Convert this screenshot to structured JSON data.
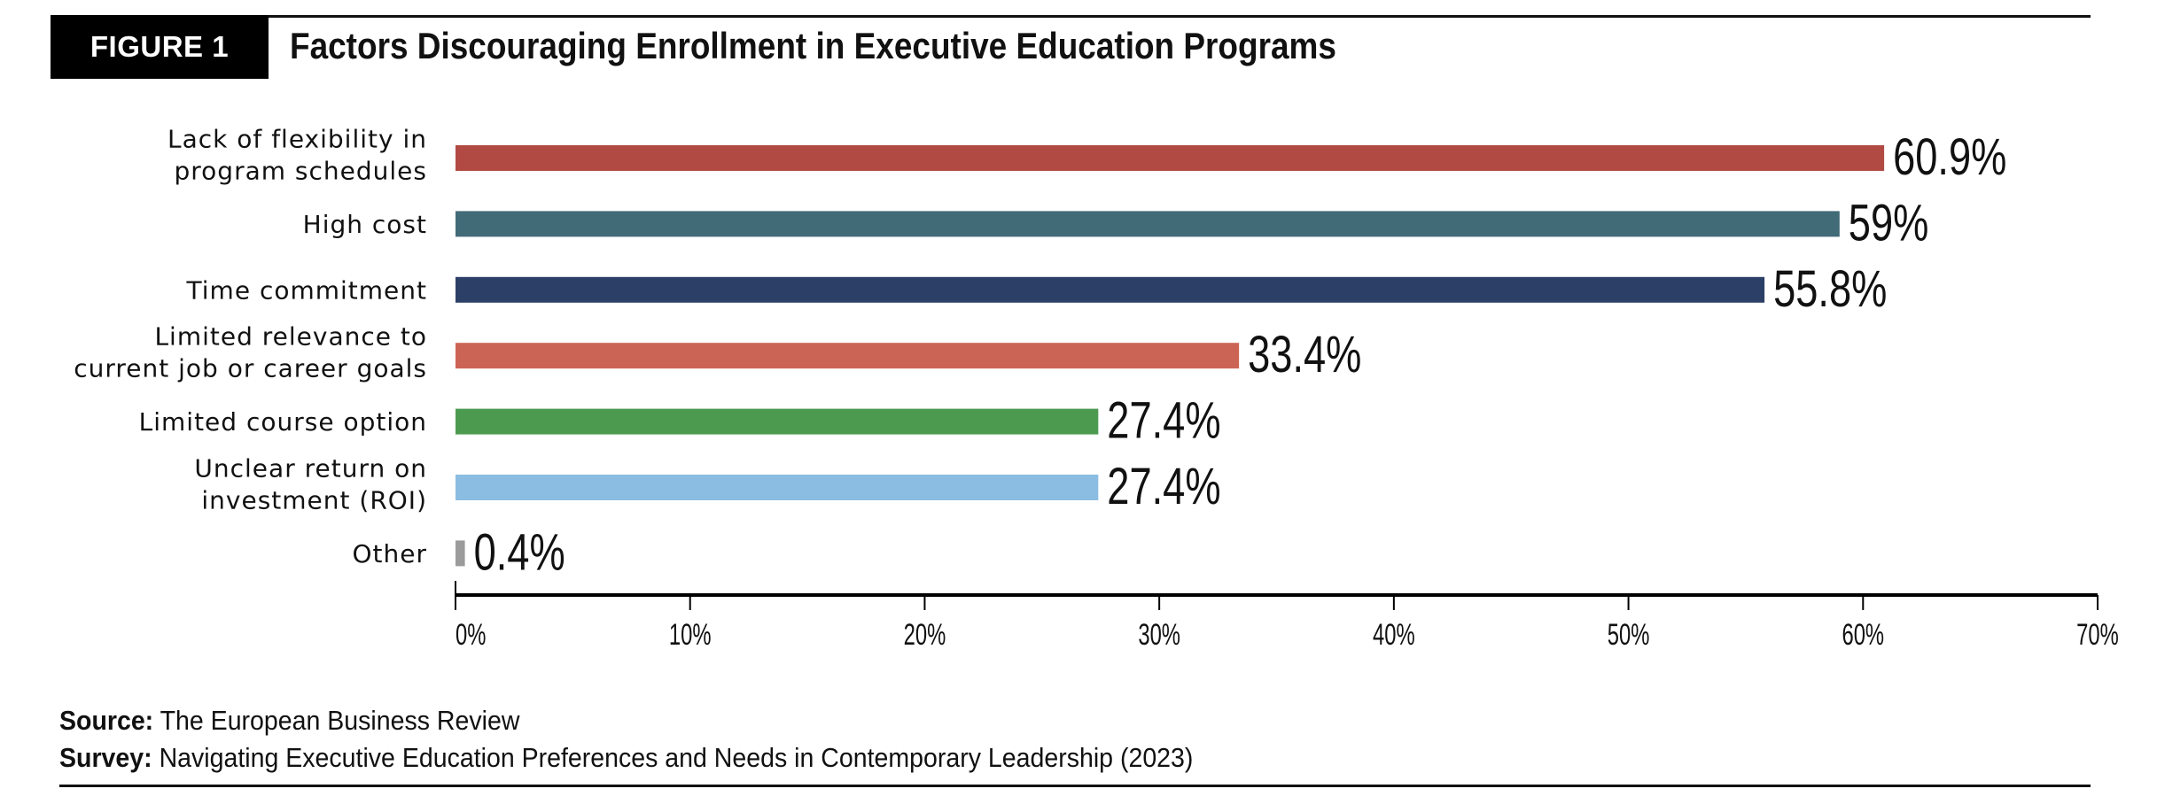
{
  "header": {
    "figure_label": "FIGURE 1",
    "title": "Factors Discouraging Enrollment in Executive Education Programs"
  },
  "chart_data": {
    "type": "bar",
    "orientation": "horizontal",
    "title": "Factors Discouraging Enrollment in Executive Education Programs",
    "xlabel": "",
    "ylabel": "",
    "xlim": [
      0,
      70
    ],
    "grid": false,
    "legend": "none",
    "categories": [
      [
        "Lack of flexibility in",
        "program schedules"
      ],
      [
        "High cost"
      ],
      [
        "Time commitment"
      ],
      [
        "Limited relevance to",
        "current job or career goals"
      ],
      [
        "Limited course option"
      ],
      [
        "Unclear return on",
        "investment (ROI)"
      ],
      [
        "Other"
      ]
    ],
    "values": [
      60.9,
      59,
      55.8,
      33.4,
      27.4,
      27.4,
      0.4
    ],
    "value_labels": [
      "60.9%",
      "59%",
      "55.8%",
      "33.4%",
      "27.4%",
      "27.4%",
      "0.4%"
    ],
    "colors": [
      "#B04A43",
      "#426B78",
      "#2C3F66",
      "#CC6455",
      "#4C9A50",
      "#8BBDE2",
      "#9B9B9B"
    ],
    "xticks": [
      0,
      10,
      20,
      30,
      40,
      50,
      60,
      70
    ],
    "xtick_labels": [
      "0%",
      "10%",
      "20%",
      "30%",
      "40%",
      "50%",
      "60%",
      "70%"
    ]
  },
  "footer": {
    "source_label": "Source:",
    "source_text": "The European Business Review",
    "survey_label": "Survey:",
    "survey_text": "Navigating Executive Education Preferences and Needs in Contemporary Leadership (2023)"
  }
}
